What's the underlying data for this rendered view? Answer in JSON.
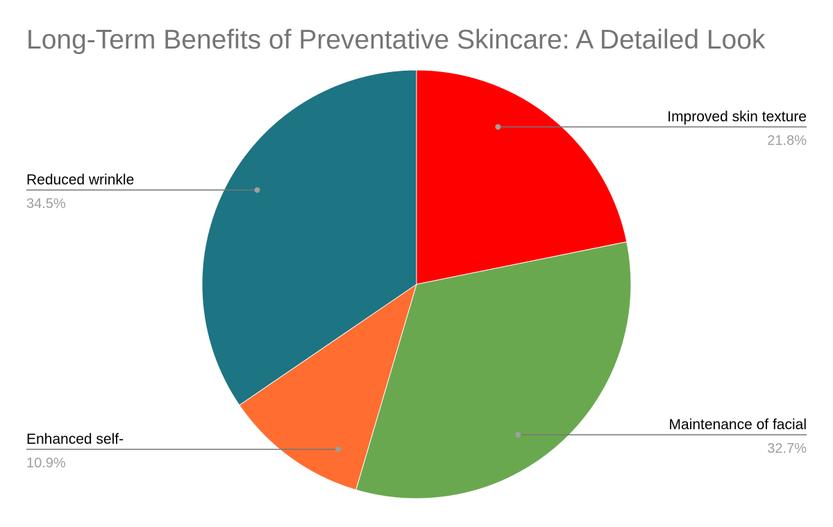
{
  "chart_data": {
    "type": "pie",
    "title": "Long-Term Benefits of Preventative Skincare: A Detailed Look",
    "start_angle_deg": 0,
    "direction": "clockwise",
    "legend": "none",
    "slices": [
      {
        "label": "Improved skin texture",
        "value": 21.8,
        "percent_label": "21.8%",
        "color": "#ff0000"
      },
      {
        "label": "Maintenance of facial",
        "value": 32.7,
        "percent_label": "32.7%",
        "color": "#6aa84f"
      },
      {
        "label": "Enhanced self-",
        "value": 10.9,
        "percent_label": "10.9%",
        "color": "#ff6d31"
      },
      {
        "label": "Reduced wrinkle",
        "value": 34.5,
        "percent_label": "34.5%",
        "color": "#1d7483"
      }
    ],
    "label_color": "#000000",
    "percent_color": "#9e9e9e",
    "leader_color": "#757575"
  }
}
